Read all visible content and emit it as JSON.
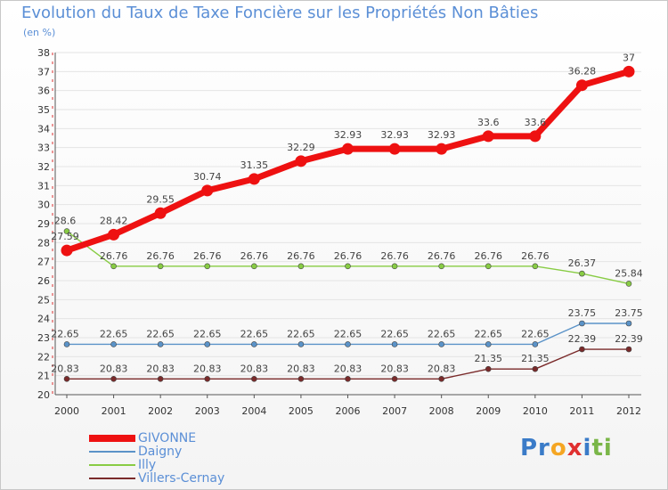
{
  "chart_data": {
    "type": "line",
    "title": "Evolution du Taux de Taxe Foncière sur les Propriétés Non Bâties",
    "unit_label": "(en %)",
    "categories": [
      "2000",
      "2001",
      "2002",
      "2003",
      "2004",
      "2005",
      "2006",
      "2007",
      "2008",
      "2009",
      "2010",
      "2011",
      "2012"
    ],
    "ylim": [
      20,
      38
    ],
    "yticks": [
      "20",
      "21",
      "22",
      "23",
      "24",
      "25",
      "26",
      "27",
      "28",
      "29",
      "30",
      "31",
      "32",
      "33",
      "34",
      "35",
      "36",
      "37",
      "38"
    ],
    "series": [
      {
        "name": "GIVONNE",
        "color": "#ee1111",
        "values": [
          27.59,
          28.42,
          29.55,
          30.74,
          31.35,
          32.29,
          32.93,
          32.93,
          32.93,
          33.6,
          33.6,
          36.28,
          37
        ],
        "labels": [
          "27.59",
          "28.42",
          "29.55",
          "30.74",
          "31.35",
          "32.29",
          "32.93",
          "32.93",
          "32.93",
          "33.6",
          "33.6",
          "36.28",
          "37"
        ]
      },
      {
        "name": "Daigny",
        "color": "#5b93c8",
        "values": [
          22.65,
          22.65,
          22.65,
          22.65,
          22.65,
          22.65,
          22.65,
          22.65,
          22.65,
          22.65,
          22.65,
          23.75,
          23.75
        ],
        "labels": [
          "22.65",
          "22.65",
          "22.65",
          "22.65",
          "22.65",
          "22.65",
          "22.65",
          "22.65",
          "22.65",
          "22.65",
          "22.65",
          "23.75",
          "23.75"
        ]
      },
      {
        "name": "Illy",
        "color": "#88cc44",
        "values": [
          28.6,
          26.76,
          26.76,
          26.76,
          26.76,
          26.76,
          26.76,
          26.76,
          26.76,
          26.76,
          26.76,
          26.37,
          25.84
        ],
        "labels": [
          "28.6",
          "26.76",
          "26.76",
          "26.76",
          "26.76",
          "26.76",
          "26.76",
          "26.76",
          "26.76",
          "26.76",
          "26.76",
          "26.37",
          "25.84"
        ]
      },
      {
        "name": "Villers-Cernay",
        "color": "#7a2a2a",
        "values": [
          20.83,
          20.83,
          20.83,
          20.83,
          20.83,
          20.83,
          20.83,
          20.83,
          20.83,
          21.35,
          21.35,
          22.39,
          22.39
        ],
        "labels": [
          "20.83",
          "20.83",
          "20.83",
          "20.83",
          "20.83",
          "20.83",
          "20.83",
          "20.83",
          "20.83",
          "21.35",
          "21.35",
          "22.39",
          "22.39"
        ]
      }
    ]
  },
  "logo": {
    "parts": [
      "Pr",
      "o",
      "x",
      "i",
      "ti"
    ]
  }
}
